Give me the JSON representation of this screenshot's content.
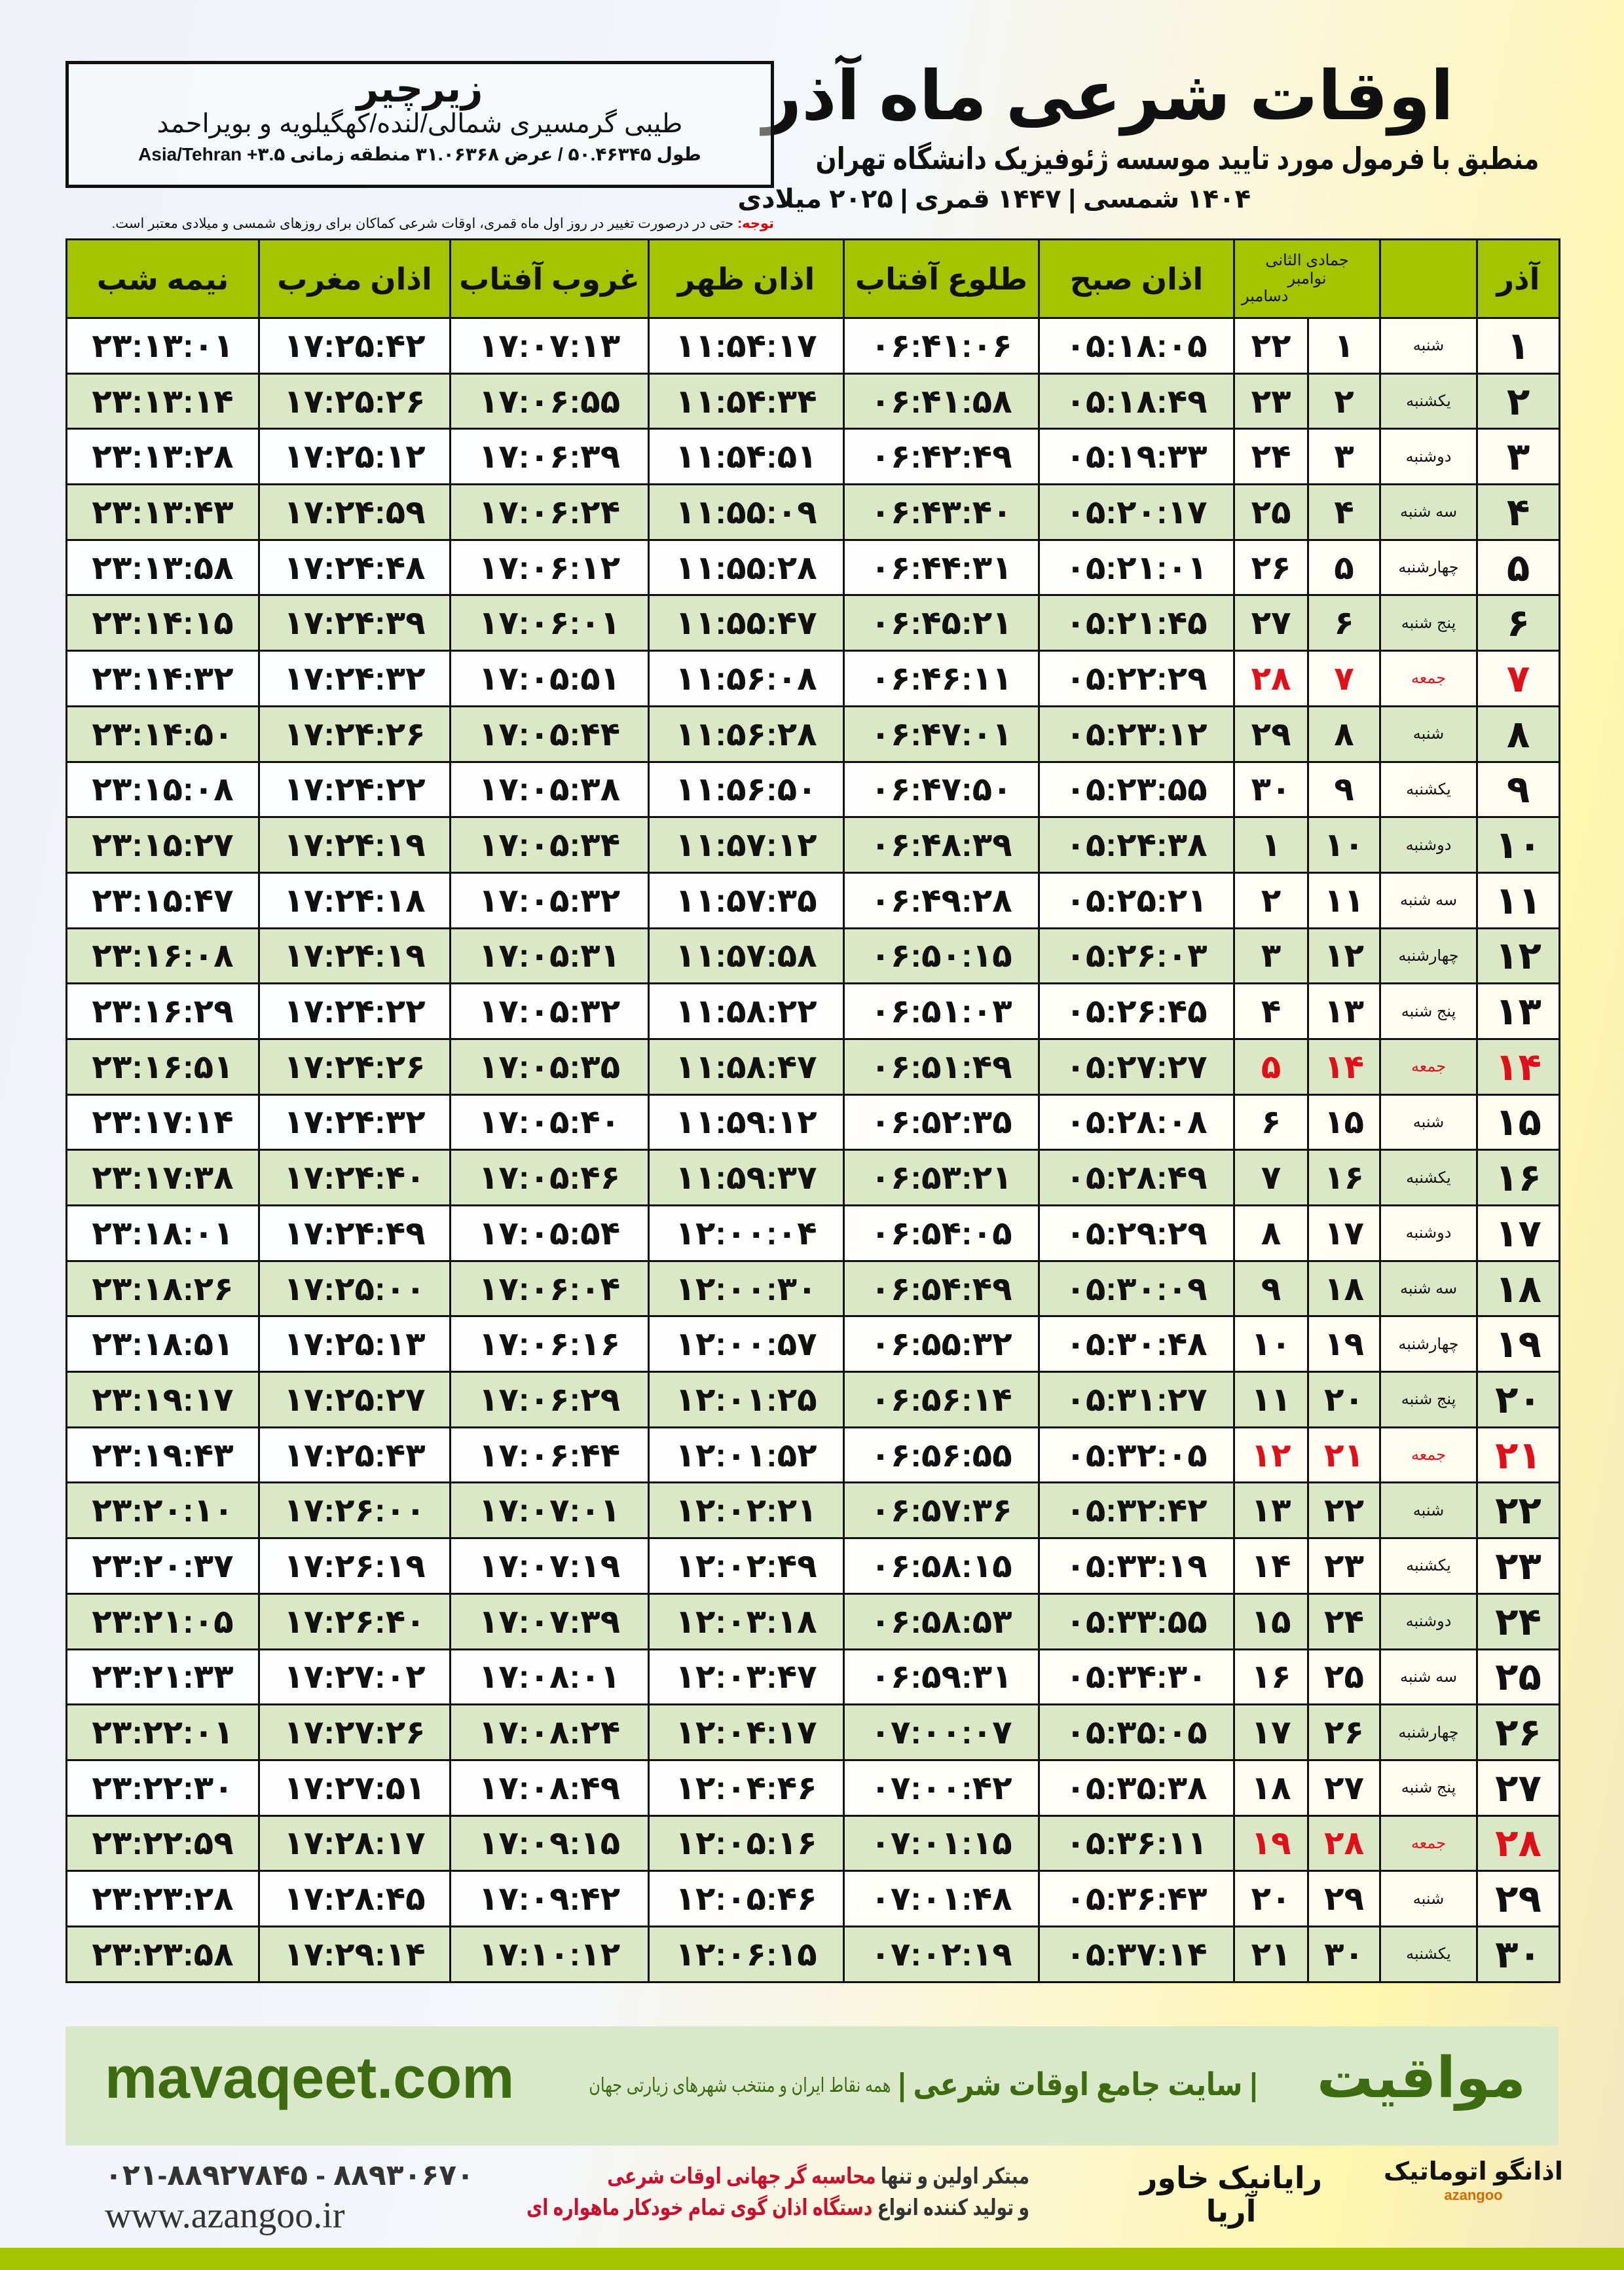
{
  "header": {
    "title": "اوقات شرعی ماه آذر",
    "subtitle": "منطبق با فرمول مورد تایید موسسه ژئوفیزیک دانشگاه تهران",
    "dates": "۱۴۰۴ شمسی | ۱۴۴۷ قمری | ۲۰۲۵ میلادی"
  },
  "location": {
    "city": "زیرچیر",
    "region": "طیبی گرمسیری شمالی/لنده/کهگیلویه و بویراحمد",
    "geo": "طول ۵۰.۴۶۳۴۵ / عرض ۳۱.۰۶۳۶۸ منطقه زمانی ۳.۵+ Asia/Tehran"
  },
  "note": {
    "label": "توجه:",
    "text": " حتی در درصورت تغییر در روز اول ماه قمری، اوقات شرعی کماکان برای روزهای شمسی و میلادی معتبر است."
  },
  "table": {
    "headers": {
      "day": "آذر",
      "weekday": "",
      "hijri": "جمادی الثانی",
      "greg_top": "نوامبر",
      "greg_bottom": "دسامبر",
      "fajr": "اذان صبح",
      "sunrise": "طلوع آفتاب",
      "dhuhr": "اذان ظهر",
      "sunset": "غروب آفتاب",
      "maghrib": "اذان مغرب",
      "midnight": "نیمه شب"
    },
    "friday_color": "#e0101a",
    "header_color": "#a4c400",
    "rows": [
      [
        "۱",
        "شنبه",
        "۱",
        "۲۲",
        "۰۵:۱۸:۰۵",
        "۰۶:۴۱:۰۶",
        "۱۱:۵۴:۱۷",
        "۱۷:۰۷:۱۳",
        "۱۷:۲۵:۴۲",
        "۲۳:۱۳:۰۱"
      ],
      [
        "۲",
        "یکشنبه",
        "۲",
        "۲۳",
        "۰۵:۱۸:۴۹",
        "۰۶:۴۱:۵۸",
        "۱۱:۵۴:۳۴",
        "۱۷:۰۶:۵۵",
        "۱۷:۲۵:۲۶",
        "۲۳:۱۳:۱۴"
      ],
      [
        "۳",
        "دوشنبه",
        "۳",
        "۲۴",
        "۰۵:۱۹:۳۳",
        "۰۶:۴۲:۴۹",
        "۱۱:۵۴:۵۱",
        "۱۷:۰۶:۳۹",
        "۱۷:۲۵:۱۲",
        "۲۳:۱۳:۲۸"
      ],
      [
        "۴",
        "سه شنبه",
        "۴",
        "۲۵",
        "۰۵:۲۰:۱۷",
        "۰۶:۴۳:۴۰",
        "۱۱:۵۵:۰۹",
        "۱۷:۰۶:۲۴",
        "۱۷:۲۴:۵۹",
        "۲۳:۱۳:۴۳"
      ],
      [
        "۵",
        "چهارشنبه",
        "۵",
        "۲۶",
        "۰۵:۲۱:۰۱",
        "۰۶:۴۴:۳۱",
        "۱۱:۵۵:۲۸",
        "۱۷:۰۶:۱۲",
        "۱۷:۲۴:۴۸",
        "۲۳:۱۳:۵۸"
      ],
      [
        "۶",
        "پنج شنبه",
        "۶",
        "۲۷",
        "۰۵:۲۱:۴۵",
        "۰۶:۴۵:۲۱",
        "۱۱:۵۵:۴۷",
        "۱۷:۰۶:۰۱",
        "۱۷:۲۴:۳۹",
        "۲۳:۱۴:۱۵"
      ],
      [
        "۷",
        "جمعه",
        "۷",
        "۲۸",
        "۰۵:۲۲:۲۹",
        "۰۶:۴۶:۱۱",
        "۱۱:۵۶:۰۸",
        "۱۷:۰۵:۵۱",
        "۱۷:۲۴:۳۲",
        "۲۳:۱۴:۳۲"
      ],
      [
        "۸",
        "شنبه",
        "۸",
        "۲۹",
        "۰۵:۲۳:۱۲",
        "۰۶:۴۷:۰۱",
        "۱۱:۵۶:۲۸",
        "۱۷:۰۵:۴۴",
        "۱۷:۲۴:۲۶",
        "۲۳:۱۴:۵۰"
      ],
      [
        "۹",
        "یکشنبه",
        "۹",
        "۳۰",
        "۰۵:۲۳:۵۵",
        "۰۶:۴۷:۵۰",
        "۱۱:۵۶:۵۰",
        "۱۷:۰۵:۳۸",
        "۱۷:۲۴:۲۲",
        "۲۳:۱۵:۰۸"
      ],
      [
        "۱۰",
        "دوشنبه",
        "۱۰",
        "۱",
        "۰۵:۲۴:۳۸",
        "۰۶:۴۸:۳۹",
        "۱۱:۵۷:۱۲",
        "۱۷:۰۵:۳۴",
        "۱۷:۲۴:۱۹",
        "۲۳:۱۵:۲۷"
      ],
      [
        "۱۱",
        "سه شنبه",
        "۱۱",
        "۲",
        "۰۵:۲۵:۲۱",
        "۰۶:۴۹:۲۸",
        "۱۱:۵۷:۳۵",
        "۱۷:۰۵:۳۲",
        "۱۷:۲۴:۱۸",
        "۲۳:۱۵:۴۷"
      ],
      [
        "۱۲",
        "چهارشنبه",
        "۱۲",
        "۳",
        "۰۵:۲۶:۰۳",
        "۰۶:۵۰:۱۵",
        "۱۱:۵۷:۵۸",
        "۱۷:۰۵:۳۱",
        "۱۷:۲۴:۱۹",
        "۲۳:۱۶:۰۸"
      ],
      [
        "۱۳",
        "پنج شنبه",
        "۱۳",
        "۴",
        "۰۵:۲۶:۴۵",
        "۰۶:۵۱:۰۳",
        "۱۱:۵۸:۲۲",
        "۱۷:۰۵:۳۲",
        "۱۷:۲۴:۲۲",
        "۲۳:۱۶:۲۹"
      ],
      [
        "۱۴",
        "جمعه",
        "۱۴",
        "۵",
        "۰۵:۲۷:۲۷",
        "۰۶:۵۱:۴۹",
        "۱۱:۵۸:۴۷",
        "۱۷:۰۵:۳۵",
        "۱۷:۲۴:۲۶",
        "۲۳:۱۶:۵۱"
      ],
      [
        "۱۵",
        "شنبه",
        "۱۵",
        "۶",
        "۰۵:۲۸:۰۸",
        "۰۶:۵۲:۳۵",
        "۱۱:۵۹:۱۲",
        "۱۷:۰۵:۴۰",
        "۱۷:۲۴:۳۲",
        "۲۳:۱۷:۱۴"
      ],
      [
        "۱۶",
        "یکشنبه",
        "۱۶",
        "۷",
        "۰۵:۲۸:۴۹",
        "۰۶:۵۳:۲۱",
        "۱۱:۵۹:۳۷",
        "۱۷:۰۵:۴۶",
        "۱۷:۲۴:۴۰",
        "۲۳:۱۷:۳۸"
      ],
      [
        "۱۷",
        "دوشنبه",
        "۱۷",
        "۸",
        "۰۵:۲۹:۲۹",
        "۰۶:۵۴:۰۵",
        "۱۲:۰۰:۰۴",
        "۱۷:۰۵:۵۴",
        "۱۷:۲۴:۴۹",
        "۲۳:۱۸:۰۱"
      ],
      [
        "۱۸",
        "سه شنبه",
        "۱۸",
        "۹",
        "۰۵:۳۰:۰۹",
        "۰۶:۵۴:۴۹",
        "۱۲:۰۰:۳۰",
        "۱۷:۰۶:۰۴",
        "۱۷:۲۵:۰۰",
        "۲۳:۱۸:۲۶"
      ],
      [
        "۱۹",
        "چهارشنبه",
        "۱۹",
        "۱۰",
        "۰۵:۳۰:۴۸",
        "۰۶:۵۵:۳۲",
        "۱۲:۰۰:۵۷",
        "۱۷:۰۶:۱۶",
        "۱۷:۲۵:۱۳",
        "۲۳:۱۸:۵۱"
      ],
      [
        "۲۰",
        "پنج شنبه",
        "۲۰",
        "۱۱",
        "۰۵:۳۱:۲۷",
        "۰۶:۵۶:۱۴",
        "۱۲:۰۱:۲۵",
        "۱۷:۰۶:۲۹",
        "۱۷:۲۵:۲۷",
        "۲۳:۱۹:۱۷"
      ],
      [
        "۲۱",
        "جمعه",
        "۲۱",
        "۱۲",
        "۰۵:۳۲:۰۵",
        "۰۶:۵۶:۵۵",
        "۱۲:۰۱:۵۲",
        "۱۷:۰۶:۴۴",
        "۱۷:۲۵:۴۳",
        "۲۳:۱۹:۴۳"
      ],
      [
        "۲۲",
        "شنبه",
        "۲۲",
        "۱۳",
        "۰۵:۳۲:۴۲",
        "۰۶:۵۷:۳۶",
        "۱۲:۰۲:۲۱",
        "۱۷:۰۷:۰۱",
        "۱۷:۲۶:۰۰",
        "۲۳:۲۰:۱۰"
      ],
      [
        "۲۳",
        "یکشنبه",
        "۲۳",
        "۱۴",
        "۰۵:۳۳:۱۹",
        "۰۶:۵۸:۱۵",
        "۱۲:۰۲:۴۹",
        "۱۷:۰۷:۱۹",
        "۱۷:۲۶:۱۹",
        "۲۳:۲۰:۳۷"
      ],
      [
        "۲۴",
        "دوشنبه",
        "۲۴",
        "۱۵",
        "۰۵:۳۳:۵۵",
        "۰۶:۵۸:۵۳",
        "۱۲:۰۳:۱۸",
        "۱۷:۰۷:۳۹",
        "۱۷:۲۶:۴۰",
        "۲۳:۲۱:۰۵"
      ],
      [
        "۲۵",
        "سه شنبه",
        "۲۵",
        "۱۶",
        "۰۵:۳۴:۳۰",
        "۰۶:۵۹:۳۱",
        "۱۲:۰۳:۴۷",
        "۱۷:۰۸:۰۱",
        "۱۷:۲۷:۰۲",
        "۲۳:۲۱:۳۳"
      ],
      [
        "۲۶",
        "چهارشنبه",
        "۲۶",
        "۱۷",
        "۰۵:۳۵:۰۵",
        "۰۷:۰۰:۰۷",
        "۱۲:۰۴:۱۷",
        "۱۷:۰۸:۲۴",
        "۱۷:۲۷:۲۶",
        "۲۳:۲۲:۰۱"
      ],
      [
        "۲۷",
        "پنج شنبه",
        "۲۷",
        "۱۸",
        "۰۵:۳۵:۳۸",
        "۰۷:۰۰:۴۲",
        "۱۲:۰۴:۴۶",
        "۱۷:۰۸:۴۹",
        "۱۷:۲۷:۵۱",
        "۲۳:۲۲:۳۰"
      ],
      [
        "۲۸",
        "جمعه",
        "۲۸",
        "۱۹",
        "۰۵:۳۶:۱۱",
        "۰۷:۰۱:۱۵",
        "۱۲:۰۵:۱۶",
        "۱۷:۰۹:۱۵",
        "۱۷:۲۸:۱۷",
        "۲۳:۲۲:۵۹"
      ],
      [
        "۲۹",
        "شنبه",
        "۲۹",
        "۲۰",
        "۰۵:۳۶:۴۳",
        "۰۷:۰۱:۴۸",
        "۱۲:۰۵:۴۶",
        "۱۷:۰۹:۴۲",
        "۱۷:۲۸:۴۵",
        "۲۳:۲۳:۲۸"
      ],
      [
        "۳۰",
        "یکشنبه",
        "۳۰",
        "۲۱",
        "۰۵:۳۷:۱۴",
        "۰۷:۰۲:۱۹",
        "۱۲:۰۶:۱۵",
        "۱۷:۱۰:۱۲",
        "۱۷:۲۹:۱۴",
        "۲۳:۲۳:۵۸"
      ]
    ]
  },
  "footer": {
    "brand": "مواقیت",
    "slogan": "| سایت جامع اوقات شرعی |",
    "slogan2": "همه نقاط ایران و منتخب شهرهای زیارتی جهان",
    "site": "mavaqeet.com",
    "phone": "۰۲۱-۸۸۹۲۷۸۴۵ - ۸۸۹۳۰۶۷۰",
    "web": "www.azangoo.ir",
    "promo_1a": "مبتکر اولین و تنها ",
    "promo_1b": "محاسبه گر جهانی اوقات شرعی",
    "promo_2a": "و تولید کننده انواع ",
    "promo_2b": "دستگاه اذان گوی تمام خودکار ماهواره ای",
    "logo_rayanik": "رایانیک خاور آریا",
    "logo_azangoo": "اذانگو اتوماتیک",
    "logo_azangoo_en": "azangoo",
    "accent": "#3d6b10",
    "bar_color": "#a4c400"
  }
}
